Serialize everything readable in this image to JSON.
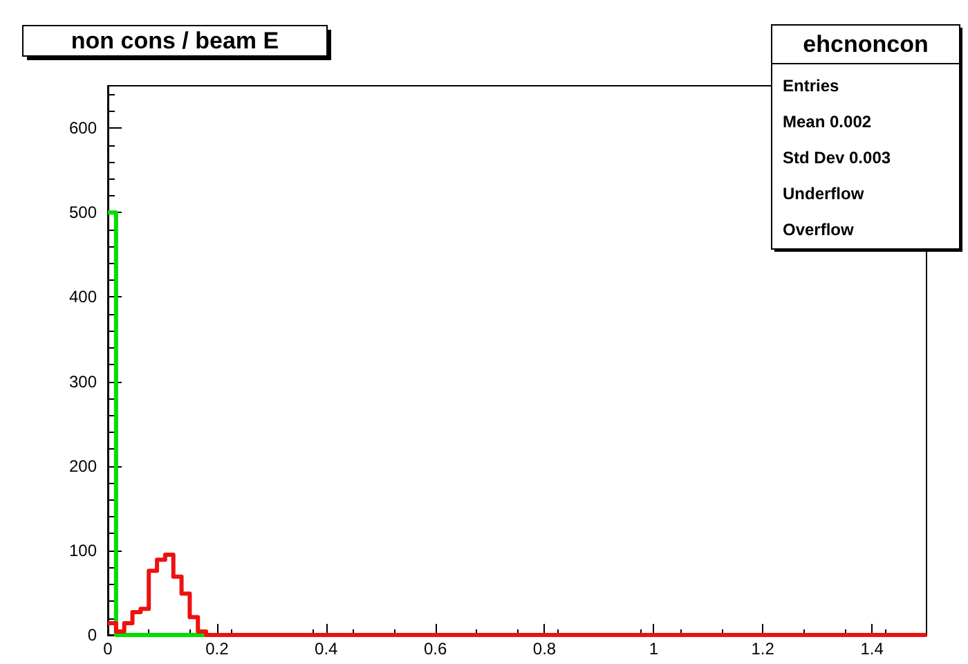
{
  "chart_data": {
    "type": "histogram",
    "title": "non cons / beam E",
    "bins": [
      0,
      0.015,
      0.03,
      0.045,
      0.06,
      0.075,
      0.09,
      0.105,
      0.12,
      0.135,
      0.15,
      0.165,
      0.18,
      0.195,
      0.21,
      0.225,
      0.24,
      0.255,
      0.27,
      0.285,
      0.3,
      0.315,
      0.33,
      0.345,
      0.36,
      0.375,
      0.39,
      0.405,
      0.42,
      0.435,
      0.45,
      0.465,
      0.48,
      0.495,
      0.51,
      0.525,
      0.54,
      0.555,
      0.57,
      0.585,
      0.6,
      0.615,
      0.63,
      0.645,
      0.66,
      0.675,
      0.69,
      0.705,
      0.72,
      0.735,
      0.75,
      0.765,
      0.78,
      0.795,
      0.81,
      0.825,
      0.84,
      0.855,
      0.87,
      0.885,
      0.9,
      0.915,
      0.93,
      0.945,
      0.96,
      0.975,
      0.99,
      1.005,
      1.02,
      1.035,
      1.05,
      1.065,
      1.08,
      1.095,
      1.11,
      1.125,
      1.14,
      1.155,
      1.17,
      1.185,
      1.2,
      1.215,
      1.23,
      1.245,
      1.26,
      1.275,
      1.29,
      1.305,
      1.32,
      1.335,
      1.35,
      1.365,
      1.38,
      1.395,
      1.41,
      1.425,
      1.44,
      1.455,
      1.47,
      1.485,
      1.5
    ],
    "series": [
      {
        "color": "#00dd00",
        "values": [
          500,
          0,
          0,
          0,
          0,
          0,
          0,
          0,
          0,
          0,
          0,
          0,
          0,
          0,
          0,
          0,
          0,
          0,
          0,
          0,
          0,
          0,
          0,
          0,
          0,
          0,
          0,
          0,
          0,
          0,
          0,
          0,
          0,
          0,
          0,
          0,
          0,
          0,
          0,
          0,
          0,
          0,
          0,
          0,
          0,
          0,
          0,
          0,
          0,
          0,
          0,
          0,
          0,
          0,
          0,
          0,
          0,
          0,
          0,
          0,
          0,
          0,
          0,
          0,
          0,
          0,
          0,
          0,
          0,
          0,
          0,
          0,
          0,
          0,
          0,
          0,
          0,
          0,
          0,
          0,
          0,
          0,
          0,
          0,
          0,
          0,
          0,
          0,
          0,
          0,
          0,
          0,
          0,
          0,
          0,
          0,
          0,
          0,
          0,
          0
        ]
      },
      {
        "color": "#ee1111",
        "values": [
          14,
          4,
          14,
          27,
          31,
          76,
          89,
          95,
          69,
          49,
          21,
          4,
          0,
          0,
          0,
          0,
          0,
          0,
          0,
          0,
          0,
          0,
          0,
          0,
          0,
          0,
          0,
          0,
          0,
          0,
          0,
          0,
          0,
          0,
          0,
          0,
          0,
          0,
          0,
          0,
          0,
          0,
          0,
          0,
          0,
          0,
          0,
          0,
          0,
          0,
          0,
          0,
          0,
          0,
          0,
          0,
          0,
          0,
          0,
          0,
          0,
          0,
          0,
          0,
          0,
          0,
          0,
          0,
          0,
          0,
          0,
          0,
          0,
          0,
          0,
          0,
          0,
          0,
          0,
          0,
          0,
          0,
          0,
          0,
          0,
          0,
          0,
          0,
          0,
          0,
          0,
          0,
          0,
          0,
          0,
          0,
          0,
          0,
          0,
          0
        ]
      }
    ],
    "xlim": [
      0,
      1.5
    ],
    "xticks": [
      0,
      0.2,
      0.4,
      0.6,
      0.8,
      1,
      1.2,
      1.4
    ],
    "ylim": [
      0,
      650
    ],
    "yticks": [
      0,
      100,
      200,
      300,
      400,
      500,
      600
    ],
    "grid": false,
    "annotations": [
      "ehcnoncon",
      "Entries",
      "Mean 0.002",
      "Std Dev 0.003",
      "Underflow",
      "Overflow"
    ]
  }
}
